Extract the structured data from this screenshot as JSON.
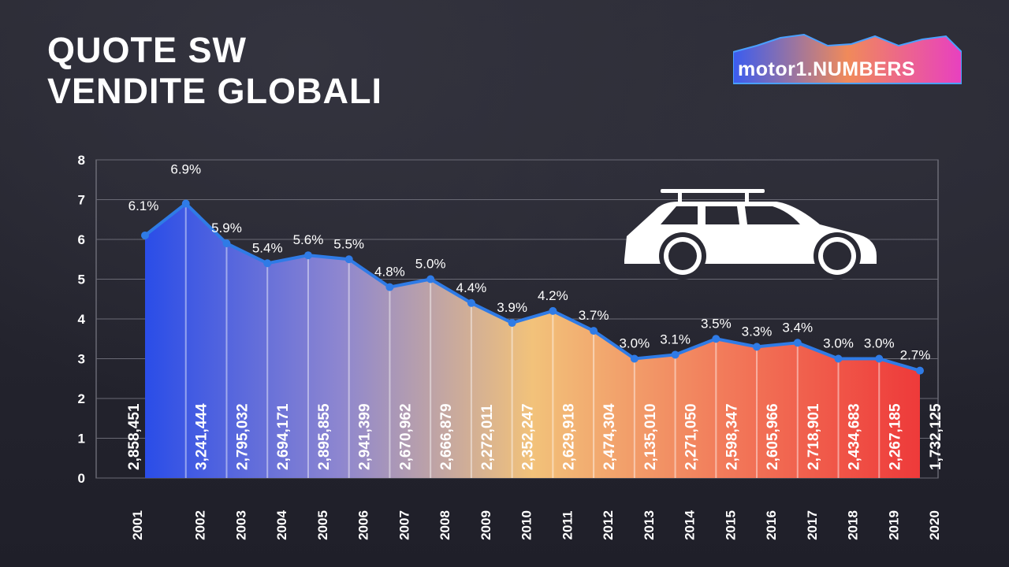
{
  "title_lines": [
    "QUOTE SW",
    "VENDITE GLOBALI"
  ],
  "logo": {
    "text": "motor1.NUMBERS"
  },
  "colors": {
    "line": "#2f7be6",
    "start": "#2a4de8",
    "mid": "#f2c27a",
    "end": "#ee3a3a"
  },
  "chart_data": {
    "type": "area",
    "title": "QUOTE SW VENDITE GLOBALI",
    "xlabel": "",
    "ylabel": "",
    "ylim": [
      0,
      8
    ],
    "yticks": [
      "0",
      "1",
      "2",
      "3",
      "4",
      "5",
      "6",
      "7",
      "8"
    ],
    "grid": true,
    "categories": [
      "2001",
      "2002",
      "2003",
      "2004",
      "2005",
      "2006",
      "2007",
      "2008",
      "2009",
      "2010",
      "2011",
      "2012",
      "2013",
      "2014",
      "2015",
      "2016",
      "2017",
      "2018",
      "2019",
      "2020"
    ],
    "share_pct": [
      6.1,
      6.9,
      5.9,
      5.4,
      5.6,
      5.5,
      4.8,
      5.0,
      4.4,
      3.9,
      4.2,
      3.7,
      3.0,
      3.1,
      3.5,
      3.3,
      3.4,
      3.0,
      3.0,
      2.7
    ],
    "share_labels": [
      "6.1%",
      "6.9%",
      "5.9%",
      "5.4%",
      "5.6%",
      "5.5%",
      "4.8%",
      "5.0%",
      "4.4%",
      "3.9%",
      "4.2%",
      "3.7%",
      "3.0%",
      "3.1%",
      "3.5%",
      "3.3%",
      "3.4%",
      "3.0%",
      "3.0%",
      "2.7%"
    ],
    "sales_labels": [
      "2,858,451",
      "3,241,444",
      "2,795,032",
      "2,694,171",
      "2,895,855",
      "2,941,399",
      "2,670,962",
      "2,666,879",
      "2,272,011",
      "2,352,247",
      "2,629,918",
      "2,474,304",
      "2,135,010",
      "2,271,050",
      "2,598,347",
      "2,605,966",
      "2,718,901",
      "2,434,683",
      "2,267,185",
      "1,732,125"
    ]
  }
}
